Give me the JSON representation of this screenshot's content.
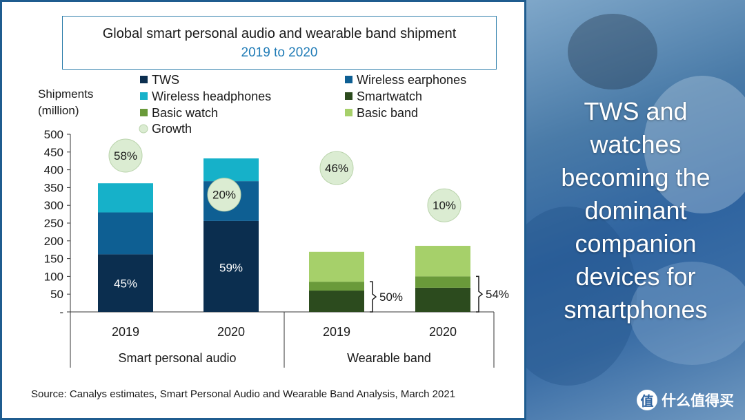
{
  "chart_data": {
    "type": "bar",
    "stacked": true,
    "title": "Global smart personal audio and wearable band shipment",
    "subtitle": "2019 to 2020",
    "ylabel": "Shipments (million)",
    "ylim": [
      0,
      500
    ],
    "yticks": [
      "-",
      "50",
      "100",
      "150",
      "200",
      "250",
      "300",
      "350",
      "400",
      "450",
      "500"
    ],
    "ytick_values": [
      0,
      50,
      100,
      150,
      200,
      250,
      300,
      350,
      400,
      450,
      500
    ],
    "grid": false,
    "legend_position": "top",
    "groups": [
      {
        "name": "Smart personal audio",
        "categories": [
          "2019",
          "2020"
        ]
      },
      {
        "name": "Wearable band",
        "categories": [
          "2019",
          "2020"
        ]
      }
    ],
    "categories": [
      "2019",
      "2020",
      "2019",
      "2020"
    ],
    "series": [
      {
        "name": "TWS",
        "color": "#0b2e4f",
        "values": [
          162,
          256,
          null,
          null
        ]
      },
      {
        "name": "Wireless earphones",
        "color": "#0e5f93",
        "values": [
          118,
          112,
          null,
          null
        ]
      },
      {
        "name": "Wireless headphones",
        "color": "#16b1c9",
        "values": [
          82,
          64,
          null,
          null
        ]
      },
      {
        "name": "Smartwatch",
        "color": "#2c4b1e",
        "values": [
          null,
          null,
          60,
          68
        ]
      },
      {
        "name": "Basic watch",
        "color": "#6a9a3a",
        "values": [
          null,
          null,
          25,
          32
        ]
      },
      {
        "name": "Basic band",
        "color": "#a6d06a",
        "values": [
          null,
          null,
          84,
          86
        ]
      }
    ],
    "growth_legend": {
      "name": "Growth",
      "color": "#dbecd2"
    },
    "growth": [
      {
        "label": "58%",
        "category_index": 0,
        "y": 440
      },
      {
        "label": "20%",
        "category_index": 1,
        "y": 330
      },
      {
        "label": "46%",
        "category_index": 2,
        "y": 405
      },
      {
        "label": "10%",
        "category_index": 3,
        "y": 300
      }
    ],
    "bar_labels": [
      {
        "label": "45%",
        "category_index": 0,
        "y": 80
      },
      {
        "label": "59%",
        "category_index": 1,
        "y": 125
      }
    ],
    "brace_labels": [
      {
        "label": "50%",
        "category_index": 2,
        "from": 0,
        "to": 85
      },
      {
        "label": "54%",
        "category_index": 3,
        "from": 0,
        "to": 100
      }
    ]
  },
  "source": "Source: Canalys estimates, Smart Personal Audio and Wearable Band Analysis, March 2021",
  "sidebar": {
    "headline": [
      "TWS and",
      "watches",
      "becoming the",
      "dominant",
      "companion",
      "devices for",
      "smartphones"
    ],
    "watermark": "什么值得买",
    "watermark_logo": "值",
    "background": "#2f64a0"
  }
}
